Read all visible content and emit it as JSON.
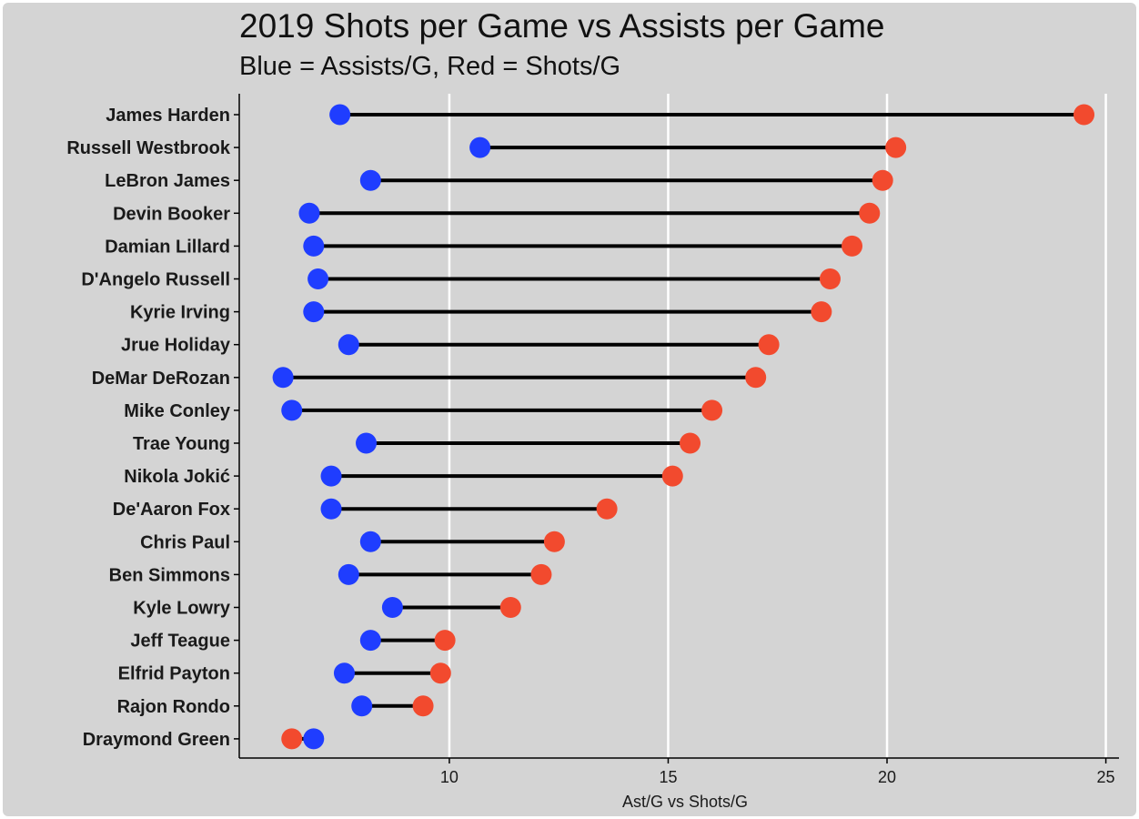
{
  "chart_data": {
    "type": "dumbbell",
    "title": "2019 Shots per Game vs Assists per Game",
    "subtitle": "Blue = Assists/G, Red = Shots/G",
    "xlabel": "Ast/G vs Shots/G",
    "ylabel": "",
    "xlim": [
      5.2,
      25.3
    ],
    "xticks": [
      10,
      15,
      20,
      25
    ],
    "grid": "vertical major gridlines",
    "legend": "none",
    "colors": {
      "assists": "#1f3dff",
      "shots": "#f24a2e",
      "segment": "#000000",
      "panel_background": "#d4d4d4",
      "grid": "#ffffff"
    },
    "categories": [
      "James Harden",
      "Russell Westbrook",
      "LeBron James",
      "Devin Booker",
      "Damian Lillard",
      "D'Angelo Russell",
      "Kyrie Irving",
      "Jrue Holiday",
      "DeMar DeRozan",
      "Mike Conley",
      "Trae Young",
      "Nikola Jokić",
      "De'Aaron Fox",
      "Chris Paul",
      "Ben Simmons",
      "Kyle Lowry",
      "Jeff Teague",
      "Elfrid Payton",
      "Rajon Rondo",
      "Draymond Green"
    ],
    "series": [
      {
        "key": "assists",
        "values": [
          7.5,
          10.7,
          8.2,
          6.8,
          6.9,
          7.0,
          6.9,
          7.7,
          6.2,
          6.4,
          8.1,
          7.3,
          7.3,
          8.2,
          7.7,
          8.7,
          8.2,
          7.6,
          8.0,
          6.9
        ]
      },
      {
        "key": "shots",
        "values": [
          24.5,
          20.2,
          19.9,
          19.6,
          19.2,
          18.7,
          18.5,
          17.3,
          17.0,
          16.0,
          15.5,
          15.1,
          13.6,
          12.4,
          12.1,
          11.4,
          9.9,
          9.8,
          9.4,
          6.4
        ]
      }
    ]
  }
}
